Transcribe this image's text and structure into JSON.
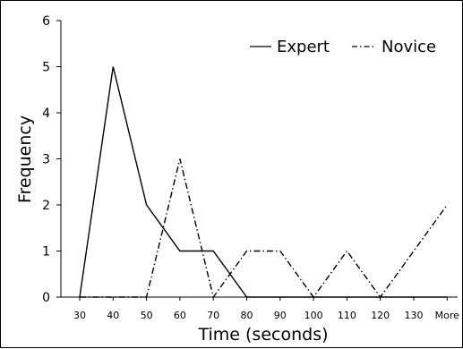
{
  "chart_data": {
    "type": "line",
    "title": "",
    "xlabel": "Time (seconds)",
    "ylabel": "Frequency",
    "categories": [
      "30",
      "40",
      "50",
      "60",
      "70",
      "80",
      "90",
      "100",
      "110",
      "120",
      "130",
      "More"
    ],
    "ylim": [
      0,
      6
    ],
    "yticks": [
      0,
      1,
      2,
      3,
      4,
      5,
      6
    ],
    "grid": false,
    "legend": "top-right",
    "series": [
      {
        "name": "Expert",
        "style": "solid",
        "color": "#000000",
        "values": [
          0,
          5,
          2,
          1,
          1,
          0,
          0,
          0,
          0,
          0,
          0,
          0
        ]
      },
      {
        "name": "Novice",
        "style": "dash-dot",
        "color": "#000000",
        "values": [
          0,
          0,
          0,
          3,
          0,
          1,
          1,
          0,
          1,
          0,
          1,
          2
        ]
      }
    ]
  }
}
